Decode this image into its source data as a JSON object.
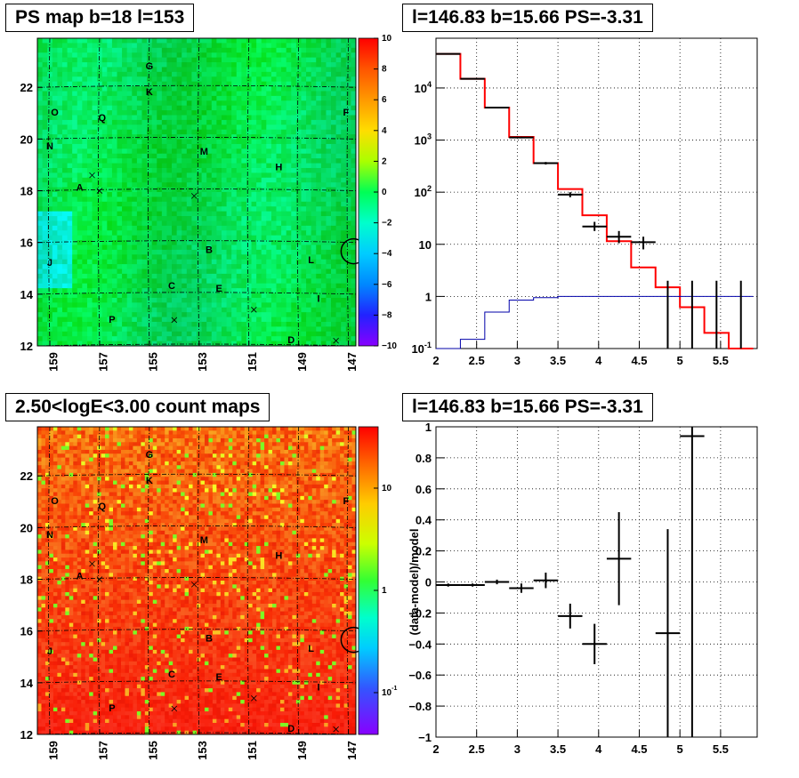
{
  "panels": {
    "ps_map": {
      "title": "PS map b=18 l=153"
    },
    "spectrum": {
      "title": "l=146.83 b=15.66 PS=-3.31"
    },
    "count_map": {
      "title": "2.50<logE<3.00 count maps"
    },
    "residual": {
      "title": "l=146.83 b=15.66 PS=-3.31"
    }
  },
  "colors": {
    "data": "#000000",
    "model": "#ff0000",
    "background_model": "#0000aa",
    "ps_map_field": "#00ee66",
    "count_map_field": "#f07020"
  },
  "chart_data": [
    {
      "type": "heatmap",
      "name": "ps_map",
      "title": "PS map b=18 l=153",
      "x_ticks": [
        "159",
        "157",
        "155",
        "153",
        "151",
        "149",
        "147"
      ],
      "y_ticks": [
        "12",
        "14",
        "16",
        "18",
        "20",
        "22"
      ],
      "xlim": [
        159.5,
        146.7
      ],
      "ylim": [
        12,
        23.9
      ],
      "colorbar": {
        "scale": "linear",
        "range": [
          -10,
          10
        ],
        "ticks": [
          "10",
          "8",
          "6",
          "4",
          "2",
          "0",
          "−2",
          "−4",
          "−6",
          "−8",
          "−10"
        ]
      },
      "sources": [
        {
          "label": "G",
          "l": 155,
          "b": 22.7
        },
        {
          "label": "K",
          "l": 155,
          "b": 21.7
        },
        {
          "label": "O",
          "l": 158.8,
          "b": 20.9
        },
        {
          "label": "Q",
          "l": 156.9,
          "b": 20.7
        },
        {
          "label": "F",
          "l": 147.1,
          "b": 20.9
        },
        {
          "label": "N",
          "l": 159,
          "b": 19.6
        },
        {
          "label": "M",
          "l": 152.8,
          "b": 19.4
        },
        {
          "label": "H",
          "l": 149.8,
          "b": 18.8
        },
        {
          "label": "A",
          "l": 157.8,
          "b": 18.0
        },
        {
          "label": "B",
          "l": 152.6,
          "b": 15.6
        },
        {
          "label": "L",
          "l": 148.5,
          "b": 15.2
        },
        {
          "label": "J",
          "l": 159,
          "b": 15.1
        },
        {
          "label": "C",
          "l": 154.1,
          "b": 14.2
        },
        {
          "label": "E",
          "l": 152.2,
          "b": 14.1
        },
        {
          "label": "I",
          "l": 148.2,
          "b": 13.7
        },
        {
          "label": "P",
          "l": 156.5,
          "b": 12.9
        },
        {
          "label": "D",
          "l": 149.3,
          "b": 12.1
        }
      ],
      "crosses": [
        [
          157.3,
          18.6
        ],
        [
          157,
          18
        ],
        [
          153.2,
          17.8
        ],
        [
          154,
          13
        ],
        [
          150.8,
          13.4
        ],
        [
          147.5,
          12.2
        ]
      ],
      "circle": {
        "l": 146.83,
        "b": 15.66
      }
    },
    {
      "type": "line",
      "name": "spectrum",
      "title": "l=146.83 b=15.66 PS=-3.31",
      "x_ticks": [
        "2",
        "2.5",
        "3",
        "3.5",
        "4",
        "4.5",
        "5",
        "5.5"
      ],
      "y_ticks": [
        "10^-1",
        "1",
        "10",
        "10^2",
        "10^3",
        "10^4"
      ],
      "xlim": [
        2,
        5.95
      ],
      "ylim": [
        0.1,
        90000
      ],
      "yscale": "log",
      "grid": true,
      "model_bins": [
        2,
        2.3,
        2.6,
        2.9,
        3.2,
        3.5,
        3.8,
        4.1,
        4.4,
        4.7,
        5.0,
        5.3,
        5.6,
        5.9
      ],
      "series": [
        {
          "role": "model",
          "color": "#ff0000",
          "values": [
            45000,
            15000,
            4200,
            1150,
            360,
            115,
            36,
            11.5,
            3.6,
            1.5,
            0.62,
            0.2,
            0.095
          ]
        },
        {
          "role": "background",
          "color": "#0000aa",
          "values": [
            0.1,
            0.15,
            0.5,
            0.85,
            0.95,
            1.0,
            1.0,
            1.0,
            1.0,
            1.0,
            1.0,
            1.0,
            1.0
          ]
        }
      ],
      "points": [
        {
          "x": 2.15,
          "y": 45000,
          "xerr": 0.15,
          "ylo": 44000,
          "yhi": 46000
        },
        {
          "x": 2.45,
          "y": 15000,
          "xerr": 0.15,
          "ylo": 14700,
          "yhi": 15300
        },
        {
          "x": 2.75,
          "y": 4200,
          "xerr": 0.15,
          "ylo": 4100,
          "yhi": 4300
        },
        {
          "x": 3.05,
          "y": 1120,
          "xerr": 0.15,
          "ylo": 1080,
          "yhi": 1160
        },
        {
          "x": 3.35,
          "y": 360,
          "xerr": 0.15,
          "ylo": 340,
          "yhi": 380
        },
        {
          "x": 3.65,
          "y": 90,
          "xerr": 0.15,
          "ylo": 80,
          "yhi": 100
        },
        {
          "x": 3.95,
          "y": 22,
          "xerr": 0.15,
          "ylo": 18,
          "yhi": 27
        },
        {
          "x": 4.25,
          "y": 14,
          "xerr": 0.15,
          "ylo": 10.5,
          "yhi": 18
        },
        {
          "x": 4.55,
          "y": 11,
          "xerr": 0.15,
          "ylo": 8,
          "yhi": 14
        },
        {
          "x": 4.85,
          "y": 0.1,
          "xerr": 0,
          "ylo": 0.1,
          "yhi": 2
        },
        {
          "x": 5.15,
          "y": 0.1,
          "xerr": 0,
          "ylo": 0.1,
          "yhi": 2
        },
        {
          "x": 5.45,
          "y": 0.1,
          "xerr": 0,
          "ylo": 0.1,
          "yhi": 2
        },
        {
          "x": 5.75,
          "y": 0.1,
          "xerr": 0,
          "ylo": 0.1,
          "yhi": 2
        }
      ]
    },
    {
      "type": "heatmap",
      "name": "count_map",
      "title": "2.50<logE<3.00 count maps",
      "x_ticks": [
        "159",
        "157",
        "155",
        "153",
        "151",
        "149",
        "147"
      ],
      "y_ticks": [
        "12",
        "14",
        "16",
        "18",
        "20",
        "22"
      ],
      "colorbar": {
        "scale": "log",
        "ticks": [
          "10",
          "1",
          "10^-1"
        ]
      }
    },
    {
      "type": "scatter",
      "name": "residual",
      "title": "l=146.83 b=15.66 PS=-3.31",
      "ylabel": "(data-model)/model",
      "x_ticks": [
        "2",
        "2.5",
        "3",
        "3.5",
        "4",
        "4.5",
        "5",
        "5.5"
      ],
      "y_ticks": [
        "1",
        "0.8",
        "0.6",
        "0.4",
        "0.2",
        "0",
        "−0.2",
        "−0.4",
        "−0.6",
        "−0.8",
        "−1"
      ],
      "xlim": [
        2,
        5.95
      ],
      "ylim": [
        -1,
        1
      ],
      "grid": true,
      "points": [
        {
          "x": 2.15,
          "y": -0.02,
          "xerr": 0.15,
          "yerr": 0.01
        },
        {
          "x": 2.45,
          "y": -0.02,
          "xerr": 0.15,
          "yerr": 0.01
        },
        {
          "x": 2.75,
          "y": 0.0,
          "xerr": 0.15,
          "yerr": 0.015
        },
        {
          "x": 3.05,
          "y": -0.04,
          "xerr": 0.15,
          "yerr": 0.03
        },
        {
          "x": 3.35,
          "y": 0.01,
          "xerr": 0.15,
          "yerr": 0.05
        },
        {
          "x": 3.65,
          "y": -0.22,
          "xerr": 0.15,
          "yerr": 0.08
        },
        {
          "x": 3.95,
          "y": -0.4,
          "xerr": 0.15,
          "yerr": 0.13
        },
        {
          "x": 4.25,
          "y": 0.15,
          "xerr": 0.15,
          "yerr": 0.3
        },
        {
          "x": 4.85,
          "y": -0.33,
          "xerr": 0.15,
          "yerr": 0.67
        },
        {
          "x": 5.15,
          "y": 0.94,
          "xerr": 0.15,
          "yerr": 1.94
        }
      ]
    }
  ]
}
